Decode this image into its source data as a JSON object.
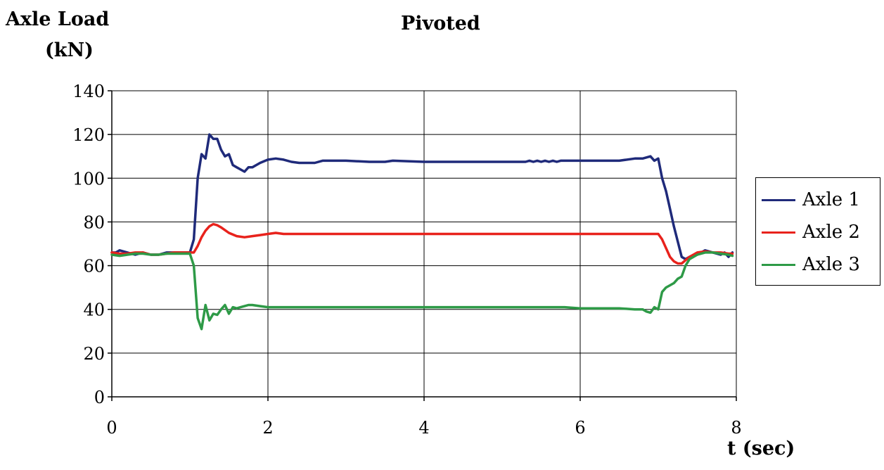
{
  "chart_data": {
    "type": "line",
    "title": "Pivoted",
    "ylabel_line1": "Axle Load",
    "ylabel_line2": "(kN)",
    "xlabel": "t (sec)",
    "xlim": [
      0,
      8
    ],
    "ylim": [
      0,
      140
    ],
    "x_ticks": [
      0,
      2,
      4,
      6,
      8
    ],
    "y_ticks": [
      0,
      20,
      40,
      60,
      80,
      100,
      120,
      140
    ],
    "grid": true,
    "legend_position": "right",
    "series": [
      {
        "name": "Axle 1",
        "color": "#1f2a7a",
        "x": [
          0,
          0.05,
          0.1,
          0.2,
          0.3,
          0.4,
          0.5,
          0.6,
          0.7,
          0.8,
          0.9,
          1.0,
          1.05,
          1.1,
          1.15,
          1.2,
          1.25,
          1.3,
          1.35,
          1.4,
          1.45,
          1.5,
          1.55,
          1.6,
          1.65,
          1.7,
          1.75,
          1.8,
          1.85,
          1.9,
          2.0,
          2.1,
          2.2,
          2.3,
          2.4,
          2.5,
          2.6,
          2.7,
          3.0,
          3.3,
          3.5,
          3.6,
          4.0,
          5.0,
          5.3,
          5.35,
          5.4,
          5.45,
          5.5,
          5.55,
          5.6,
          5.65,
          5.7,
          5.75,
          5.8,
          5.9,
          6.0,
          6.5,
          6.7,
          6.8,
          6.9,
          6.95,
          7.0,
          7.05,
          7.1,
          7.15,
          7.2,
          7.25,
          7.3,
          7.35,
          7.4,
          7.5,
          7.55,
          7.6,
          7.7,
          7.8,
          7.85,
          7.9,
          7.95
        ],
        "values": [
          66,
          66,
          67,
          66,
          65,
          66,
          65,
          65,
          66,
          66,
          66,
          66,
          72,
          100,
          111,
          109,
          120,
          118,
          118,
          113,
          110,
          111,
          106,
          105,
          104,
          103,
          105,
          105,
          106,
          107,
          108.5,
          109,
          108.5,
          107.5,
          107,
          107,
          107,
          108,
          108,
          107.5,
          107.5,
          108,
          107.5,
          107.5,
          107.5,
          108,
          107.5,
          108,
          107.5,
          108,
          107.5,
          108,
          107.5,
          108,
          108,
          108,
          108,
          108,
          109,
          109,
          110,
          108,
          109,
          100,
          94,
          86,
          78,
          71,
          64,
          63,
          64,
          65,
          66,
          67,
          66,
          65,
          66,
          64,
          66
        ]
      },
      {
        "name": "Axle 2",
        "color": "#e8221c",
        "x": [
          0,
          0.1,
          0.2,
          0.3,
          0.4,
          0.5,
          0.6,
          0.7,
          0.8,
          0.9,
          1.0,
          1.05,
          1.1,
          1.15,
          1.2,
          1.25,
          1.3,
          1.35,
          1.4,
          1.5,
          1.6,
          1.7,
          1.8,
          1.9,
          2.0,
          2.1,
          2.2,
          2.5,
          3.0,
          4.0,
          5.0,
          6.0,
          6.5,
          7.0,
          7.05,
          7.1,
          7.15,
          7.2,
          7.25,
          7.3,
          7.35,
          7.4,
          7.5,
          7.6,
          7.7,
          7.8,
          7.9,
          7.95
        ],
        "values": [
          66,
          65.5,
          65.5,
          66,
          66,
          65,
          65,
          65.5,
          66,
          66,
          66,
          66,
          69,
          73,
          76,
          78,
          79,
          78.5,
          77.5,
          75,
          73.5,
          73,
          73.5,
          74,
          74.5,
          75,
          74.5,
          74.5,
          74.5,
          74.5,
          74.5,
          74.5,
          74.5,
          74.5,
          72,
          68,
          64,
          62,
          61,
          61,
          62.5,
          64,
          66,
          66.5,
          66,
          66,
          65.5,
          65.5
        ]
      },
      {
        "name": "Axle 3",
        "color": "#2e9a47",
        "x": [
          0,
          0.1,
          0.2,
          0.3,
          0.4,
          0.5,
          0.6,
          0.7,
          0.8,
          0.9,
          1.0,
          1.05,
          1.1,
          1.15,
          1.2,
          1.25,
          1.3,
          1.35,
          1.4,
          1.45,
          1.5,
          1.55,
          1.6,
          1.65,
          1.7,
          1.75,
          1.8,
          1.9,
          2.0,
          2.2,
          2.5,
          2.8,
          3.0,
          4.0,
          5.0,
          5.3,
          5.4,
          5.5,
          5.6,
          5.7,
          5.8,
          6.0,
          6.5,
          6.7,
          6.8,
          6.85,
          6.9,
          6.95,
          7.0,
          7.05,
          7.1,
          7.15,
          7.2,
          7.25,
          7.3,
          7.35,
          7.4,
          7.5,
          7.6,
          7.7,
          7.8,
          7.9,
          7.95
        ],
        "values": [
          65,
          64.5,
          65,
          65.5,
          65.5,
          65,
          65,
          65.5,
          65.5,
          65.5,
          65.5,
          60,
          36,
          31,
          42,
          35,
          38,
          37.5,
          40,
          42,
          38,
          41,
          40.5,
          41,
          41.5,
          42,
          42,
          41.5,
          41,
          41,
          41,
          41,
          41,
          41,
          41,
          41,
          41,
          41,
          41,
          41,
          41,
          40.5,
          40.5,
          40,
          40,
          39,
          38.5,
          41,
          40,
          48,
          50,
          51,
          52,
          54,
          55,
          60,
          63,
          65,
          66,
          66,
          65.5,
          65,
          64.5
        ]
      }
    ]
  }
}
